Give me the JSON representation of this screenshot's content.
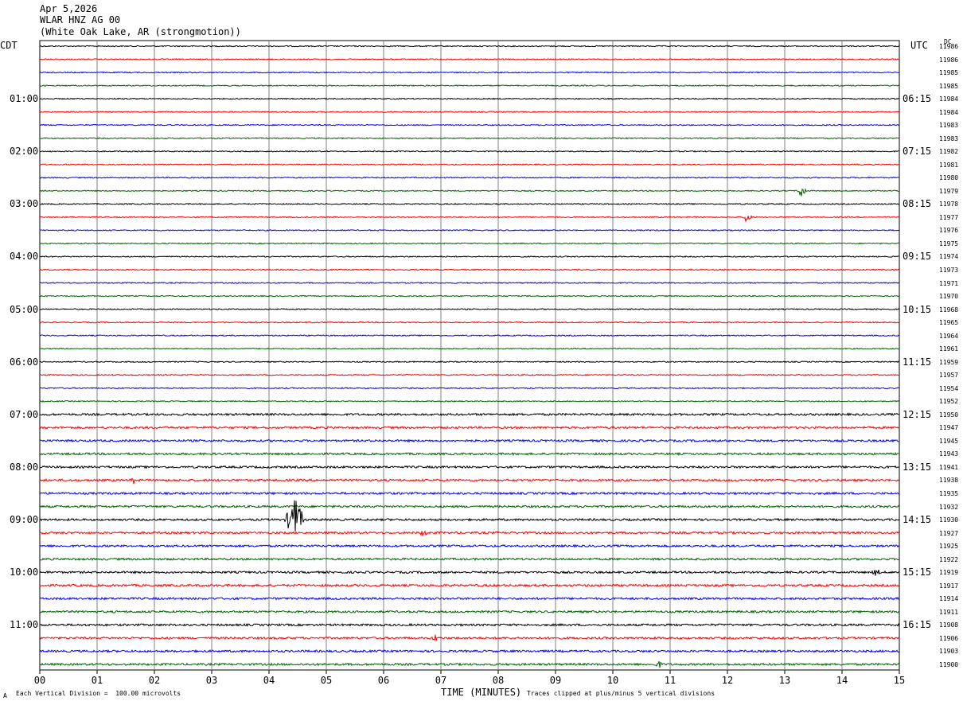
{
  "header": {
    "date": "Apr 5,2026",
    "station": "WLAR HNZ AG 00",
    "location": "(White Oak Lake, AR (strongmotion))"
  },
  "left_timezone": "CDT",
  "right_timezone": "UTC",
  "dc_label": "DC",
  "footer": {
    "scale_note": "Each Vertical Division =  100.00 microvolts",
    "xlabel": "TIME (MINUTES)",
    "clip_note": "Traces clipped at plus/minus 5 vertical divisions",
    "corner_mark": "A"
  },
  "chart_data": {
    "type": "line",
    "xlabel": "TIME (MINUTES)",
    "xlim": [
      0,
      15
    ],
    "x_ticks": [
      "00",
      "01",
      "02",
      "03",
      "04",
      "05",
      "06",
      "07",
      "08",
      "09",
      "10",
      "11",
      "12",
      "13",
      "14",
      "15"
    ],
    "row_count": 48,
    "trace_colors": [
      "#000000",
      "#ff0000",
      "#0000ff",
      "#006400"
    ],
    "left_hour_labels": [
      {
        "row": 4,
        "label": "01:00"
      },
      {
        "row": 8,
        "label": "02:00"
      },
      {
        "row": 12,
        "label": "03:00"
      },
      {
        "row": 16,
        "label": "04:00"
      },
      {
        "row": 20,
        "label": "05:00"
      },
      {
        "row": 24,
        "label": "06:00"
      },
      {
        "row": 28,
        "label": "07:00"
      },
      {
        "row": 32,
        "label": "08:00"
      },
      {
        "row": 36,
        "label": "09:00"
      },
      {
        "row": 40,
        "label": "10:00"
      },
      {
        "row": 44,
        "label": "11:00"
      }
    ],
    "right_hour_labels": [
      {
        "row": 4,
        "label": "06:15"
      },
      {
        "row": 8,
        "label": "07:15"
      },
      {
        "row": 12,
        "label": "08:15"
      },
      {
        "row": 16,
        "label": "09:15"
      },
      {
        "row": 20,
        "label": "10:15"
      },
      {
        "row": 24,
        "label": "11:15"
      },
      {
        "row": 28,
        "label": "12:15"
      },
      {
        "row": 32,
        "label": "13:15"
      },
      {
        "row": 36,
        "label": "14:15"
      },
      {
        "row": 40,
        "label": "15:15"
      },
      {
        "row": 44,
        "label": "16:15"
      }
    ],
    "dc_values": [
      "11986",
      "11986",
      "11985",
      "11985",
      "11984",
      "11984",
      "11983",
      "11983",
      "11982",
      "11981",
      "11980",
      "11979",
      "11978",
      "11977",
      "11976",
      "11975",
      "11974",
      "11973",
      "11971",
      "11970",
      "11968",
      "11965",
      "11964",
      "11961",
      "11959",
      "11957",
      "11954",
      "11952",
      "11950",
      "11947",
      "11945",
      "11943",
      "11941",
      "11938",
      "11935",
      "11932",
      "11930",
      "11927",
      "11925",
      "11922",
      "11919",
      "11917",
      "11914",
      "11911",
      "11908",
      "11906",
      "11903",
      "11900"
    ],
    "events": [
      {
        "row": 36,
        "minute": 4.45,
        "amplitude": "large",
        "note": "strong signal spanning rows 33-38"
      },
      {
        "row": 11,
        "minute": 13.3,
        "amplitude": "medium"
      },
      {
        "row": 13,
        "minute": 12.35,
        "amplitude": "medium"
      },
      {
        "row": 33,
        "minute": 1.65,
        "amplitude": "small"
      },
      {
        "row": 37,
        "minute": 6.7,
        "amplitude": "small"
      },
      {
        "row": 45,
        "minute": 6.9,
        "amplitude": "small"
      },
      {
        "row": 40,
        "minute": 14.6,
        "amplitude": "small"
      },
      {
        "row": 47,
        "minute": 10.8,
        "amplitude": "small"
      }
    ]
  }
}
